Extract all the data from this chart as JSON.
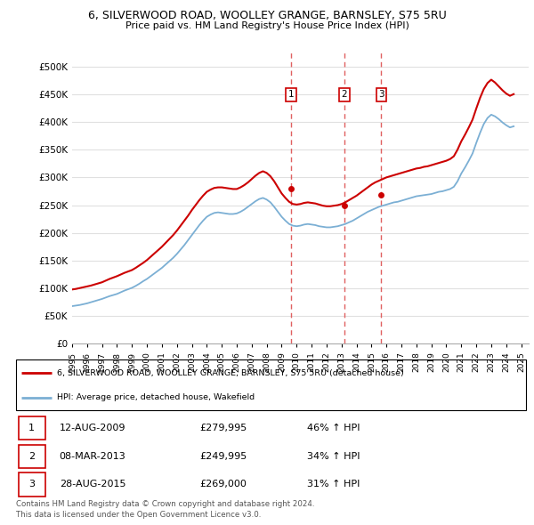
{
  "title_line1": "6, SILVERWOOD ROAD, WOOLLEY GRANGE, BARNSLEY, S75 5RU",
  "title_line2": "Price paid vs. HM Land Registry's House Price Index (HPI)",
  "xlim_start": 1995.0,
  "xlim_end": 2025.5,
  "ylim_min": 0,
  "ylim_max": 525000,
  "yticks": [
    0,
    50000,
    100000,
    150000,
    200000,
    250000,
    300000,
    350000,
    400000,
    450000,
    500000
  ],
  "ytick_labels": [
    "£0",
    "£50K",
    "£100K",
    "£150K",
    "£200K",
    "£250K",
    "£300K",
    "£350K",
    "£400K",
    "£450K",
    "£500K"
  ],
  "xticks": [
    1995,
    1996,
    1997,
    1998,
    1999,
    2000,
    2001,
    2002,
    2003,
    2004,
    2005,
    2006,
    2007,
    2008,
    2009,
    2010,
    2011,
    2012,
    2013,
    2014,
    2015,
    2016,
    2017,
    2018,
    2019,
    2020,
    2021,
    2022,
    2023,
    2024,
    2025
  ],
  "hpi_color": "#7bafd4",
  "price_color": "#cc0000",
  "dot_color": "#cc0000",
  "vline_color": "#e06060",
  "transaction_dates": [
    2009.617,
    2013.183,
    2015.656
  ],
  "transaction_prices": [
    279995,
    249995,
    269000
  ],
  "transaction_labels": [
    "1",
    "2",
    "3"
  ],
  "legend_label_red": "6, SILVERWOOD ROAD, WOOLLEY GRANGE, BARNSLEY, S75 5RU (detached house)",
  "legend_label_blue": "HPI: Average price, detached house, Wakefield",
  "table_rows": [
    [
      "1",
      "12-AUG-2009",
      "£279,995",
      "46% ↑ HPI"
    ],
    [
      "2",
      "08-MAR-2013",
      "£249,995",
      "34% ↑ HPI"
    ],
    [
      "3",
      "28-AUG-2015",
      "£269,000",
      "31% ↑ HPI"
    ]
  ],
  "footer_line1": "Contains HM Land Registry data © Crown copyright and database right 2024.",
  "footer_line2": "This data is licensed under the Open Government Licence v3.0.",
  "hpi_x": [
    1995.0,
    1995.25,
    1995.5,
    1995.75,
    1996.0,
    1996.25,
    1996.5,
    1996.75,
    1997.0,
    1997.25,
    1997.5,
    1997.75,
    1998.0,
    1998.25,
    1998.5,
    1998.75,
    1999.0,
    1999.25,
    1999.5,
    1999.75,
    2000.0,
    2000.25,
    2000.5,
    2000.75,
    2001.0,
    2001.25,
    2001.5,
    2001.75,
    2002.0,
    2002.25,
    2002.5,
    2002.75,
    2003.0,
    2003.25,
    2003.5,
    2003.75,
    2004.0,
    2004.25,
    2004.5,
    2004.75,
    2005.0,
    2005.25,
    2005.5,
    2005.75,
    2006.0,
    2006.25,
    2006.5,
    2006.75,
    2007.0,
    2007.25,
    2007.5,
    2007.75,
    2008.0,
    2008.25,
    2008.5,
    2008.75,
    2009.0,
    2009.25,
    2009.5,
    2009.75,
    2010.0,
    2010.25,
    2010.5,
    2010.75,
    2011.0,
    2011.25,
    2011.5,
    2011.75,
    2012.0,
    2012.25,
    2012.5,
    2012.75,
    2013.0,
    2013.25,
    2013.5,
    2013.75,
    2014.0,
    2014.25,
    2014.5,
    2014.75,
    2015.0,
    2015.25,
    2015.5,
    2015.75,
    2016.0,
    2016.25,
    2016.5,
    2016.75,
    2017.0,
    2017.25,
    2017.5,
    2017.75,
    2018.0,
    2018.25,
    2018.5,
    2018.75,
    2019.0,
    2019.25,
    2019.5,
    2019.75,
    2020.0,
    2020.25,
    2020.5,
    2020.75,
    2021.0,
    2021.25,
    2021.5,
    2021.75,
    2022.0,
    2022.25,
    2022.5,
    2022.75,
    2023.0,
    2023.25,
    2023.5,
    2023.75,
    2024.0,
    2024.25,
    2024.5
  ],
  "hpi_y": [
    68000,
    69000,
    70000,
    71500,
    73000,
    75000,
    77000,
    79000,
    81000,
    83500,
    86000,
    88000,
    90000,
    93000,
    96000,
    98500,
    101000,
    104500,
    108500,
    113000,
    117000,
    122000,
    127000,
    132000,
    137000,
    143000,
    149000,
    155000,
    162000,
    170000,
    178000,
    187000,
    196000,
    205000,
    214000,
    222000,
    229000,
    233000,
    236000,
    237000,
    236000,
    235000,
    234000,
    234000,
    235000,
    238000,
    242000,
    247000,
    252000,
    257000,
    261000,
    263000,
    260000,
    255000,
    247000,
    238000,
    229000,
    222000,
    216000,
    213000,
    212000,
    213000,
    215000,
    216000,
    215000,
    214000,
    212000,
    211000,
    210000,
    210000,
    211000,
    212000,
    214000,
    216000,
    219000,
    222000,
    226000,
    230000,
    234000,
    238000,
    241000,
    244000,
    247000,
    249000,
    251000,
    253000,
    255000,
    256000,
    258000,
    260000,
    262000,
    264000,
    266000,
    267000,
    268000,
    269000,
    270000,
    272000,
    274000,
    275000,
    277000,
    279000,
    283000,
    293000,
    307000,
    318000,
    330000,
    343000,
    362000,
    380000,
    396000,
    407000,
    413000,
    410000,
    405000,
    399000,
    394000,
    390000,
    392000
  ],
  "price_x": [
    1995.0,
    1995.25,
    1995.5,
    1995.75,
    1996.0,
    1996.25,
    1996.5,
    1996.75,
    1997.0,
    1997.25,
    1997.5,
    1997.75,
    1998.0,
    1998.25,
    1998.5,
    1998.75,
    1999.0,
    1999.25,
    1999.5,
    1999.75,
    2000.0,
    2000.25,
    2000.5,
    2000.75,
    2001.0,
    2001.25,
    2001.5,
    2001.75,
    2002.0,
    2002.25,
    2002.5,
    2002.75,
    2003.0,
    2003.25,
    2003.5,
    2003.75,
    2004.0,
    2004.25,
    2004.5,
    2004.75,
    2005.0,
    2005.25,
    2005.5,
    2005.75,
    2006.0,
    2006.25,
    2006.5,
    2006.75,
    2007.0,
    2007.25,
    2007.5,
    2007.75,
    2008.0,
    2008.25,
    2008.5,
    2008.75,
    2009.0,
    2009.25,
    2009.5,
    2009.75,
    2010.0,
    2010.25,
    2010.5,
    2010.75,
    2011.0,
    2011.25,
    2011.5,
    2011.75,
    2012.0,
    2012.25,
    2012.5,
    2012.75,
    2013.0,
    2013.25,
    2013.5,
    2013.75,
    2014.0,
    2014.25,
    2014.5,
    2014.75,
    2015.0,
    2015.25,
    2015.5,
    2015.75,
    2016.0,
    2016.25,
    2016.5,
    2016.75,
    2017.0,
    2017.25,
    2017.5,
    2017.75,
    2018.0,
    2018.25,
    2018.5,
    2018.75,
    2019.0,
    2019.25,
    2019.5,
    2019.75,
    2020.0,
    2020.25,
    2020.5,
    2020.75,
    2021.0,
    2021.25,
    2021.5,
    2021.75,
    2022.0,
    2022.25,
    2022.5,
    2022.75,
    2023.0,
    2023.25,
    2023.5,
    2023.75,
    2024.0,
    2024.25,
    2024.5
  ],
  "price_y": [
    98000,
    99000,
    100500,
    102000,
    103500,
    105000,
    107000,
    109000,
    111000,
    114000,
    117000,
    119500,
    122000,
    125000,
    128000,
    130500,
    133000,
    137000,
    141500,
    146000,
    151000,
    157000,
    163000,
    169000,
    175000,
    182000,
    189000,
    196000,
    204000,
    213000,
    222000,
    231000,
    241000,
    250000,
    259000,
    267000,
    274000,
    278000,
    281000,
    282000,
    282000,
    281000,
    280000,
    279000,
    279000,
    282000,
    286000,
    291000,
    297000,
    303000,
    308000,
    311000,
    308000,
    302000,
    293000,
    282000,
    271000,
    263000,
    256000,
    252000,
    251000,
    252000,
    254000,
    255000,
    254000,
    253000,
    251000,
    249000,
    248000,
    248000,
    249000,
    250000,
    252000,
    255000,
    259000,
    263000,
    267000,
    272000,
    277000,
    282000,
    287000,
    291000,
    294000,
    297000,
    300000,
    302000,
    304000,
    306000,
    308000,
    310000,
    312000,
    314000,
    316000,
    317000,
    319000,
    320000,
    322000,
    324000,
    326000,
    328000,
    330000,
    333000,
    338000,
    350000,
    365000,
    377000,
    390000,
    404000,
    424000,
    443000,
    459000,
    470000,
    476000,
    471000,
    464000,
    457000,
    451000,
    447000,
    450000
  ]
}
